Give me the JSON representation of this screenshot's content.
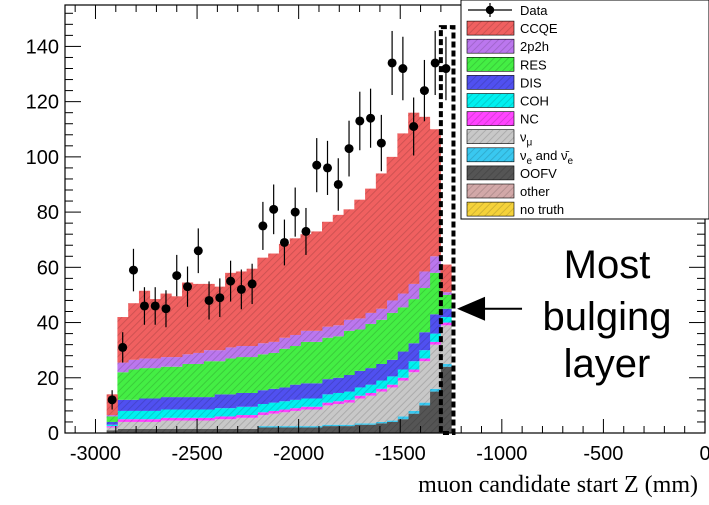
{
  "chart_data": {
    "type": "bar",
    "stacked": true,
    "xlabel": "muon candidate start Z (mm)",
    "ylabel": "",
    "xlim": [
      -3150,
      0
    ],
    "ylim": [
      0,
      155
    ],
    "x_ticks": [
      -3000,
      -2500,
      -2000,
      -1500,
      -1000,
      -500,
      0
    ],
    "x_tick_labels": [
      "-3000",
      "-2500",
      "-2000",
      "-1500",
      "-1000",
      "-500",
      "0"
    ],
    "y_ticks": [
      0,
      20,
      40,
      60,
      80,
      100,
      120,
      140
    ],
    "y_tick_labels": [
      "0",
      "20",
      "40",
      "60",
      "80",
      "100",
      "120",
      "140"
    ],
    "bin_edges": [
      -2945,
      -2892,
      -2839,
      -2786,
      -2733,
      -2680,
      -2627,
      -2574,
      -2521,
      -2468,
      -2415,
      -2362,
      -2309,
      -2256,
      -2203,
      -2150,
      -2097,
      -2044,
      -1991,
      -1938,
      -1885,
      -1832,
      -1779,
      -1726,
      -1673,
      -1620,
      -1567,
      -1514,
      -1461,
      -1408,
      -1355,
      -1302,
      -1249
    ],
    "series": [
      {
        "name": "OOFV",
        "color": "#555555",
        "values": [
          1,
          1.5,
          1.5,
          1.5,
          1.5,
          1.5,
          1.5,
          1.5,
          1.5,
          1.5,
          1.5,
          1.5,
          1.5,
          1.5,
          2,
          2,
          2,
          2,
          2,
          2,
          2.5,
          2.5,
          2.5,
          3,
          3,
          3.5,
          4,
          5,
          7,
          10,
          15,
          24
        ]
      },
      {
        "name": "other",
        "color": "#d2a8a8",
        "values": [
          0,
          0,
          0,
          0,
          0,
          0,
          0,
          0,
          0,
          0,
          0,
          0,
          0,
          0,
          0,
          0,
          0,
          0,
          0,
          0,
          0,
          0,
          0,
          0,
          0,
          0,
          0,
          0,
          0,
          0,
          0,
          0
        ]
      },
      {
        "name": "νe and ν̄e",
        "color": "#39c8f0",
        "values": [
          0,
          0,
          0,
          0,
          0,
          0,
          0,
          0,
          0,
          0,
          0,
          0,
          0,
          0,
          0.5,
          0.5,
          0.5,
          0.5,
          0.5,
          0.5,
          0.5,
          0.5,
          0.5,
          0.5,
          0.5,
          0.5,
          0.5,
          1,
          1,
          1,
          1,
          1
        ]
      },
      {
        "name": "νμ",
        "color": "#c8c8c8",
        "values": [
          1,
          2.5,
          2.5,
          2.5,
          2.5,
          3,
          3,
          3,
          3,
          3,
          3.5,
          3.5,
          4,
          4,
          4,
          4.5,
          5,
          5.5,
          6,
          6,
          7,
          7.5,
          8,
          9,
          10,
          11,
          12,
          13,
          14,
          15,
          16,
          14
        ]
      },
      {
        "name": "NC",
        "color": "#ff44ff",
        "values": [
          0.5,
          1,
          1,
          1,
          1,
          1,
          1,
          1,
          1,
          1,
          1,
          1,
          1,
          1,
          1,
          1,
          1,
          1,
          1,
          1,
          1,
          1,
          1,
          1,
          1,
          1,
          1,
          1,
          1,
          1,
          1,
          1
        ]
      },
      {
        "name": "COH",
        "color": "#00f0f0",
        "values": [
          0.5,
          3,
          3,
          3,
          3,
          3,
          3,
          3,
          3,
          3,
          3,
          3,
          3,
          3,
          3,
          3,
          3,
          3,
          3,
          3,
          3,
          3,
          3,
          3,
          3,
          3,
          3,
          3,
          3,
          3,
          3,
          2
        ]
      },
      {
        "name": "DIS",
        "color": "#5050f0",
        "values": [
          1,
          4,
          4,
          4.5,
          4.5,
          4.5,
          4.5,
          4.5,
          4.5,
          4.5,
          5,
          5,
          5,
          5,
          5,
          5,
          5,
          5.5,
          5.5,
          5.5,
          5.5,
          5.5,
          6,
          6,
          6,
          6,
          6,
          6.5,
          6.5,
          6.5,
          7,
          3
        ]
      },
      {
        "name": "RES",
        "color": "#44ee44",
        "values": [
          2,
          10,
          11,
          11,
          11,
          11,
          11,
          12,
          12,
          13,
          12,
          13,
          13,
          13,
          13,
          13,
          14,
          14,
          15,
          15,
          15,
          15,
          16,
          15,
          16,
          16,
          17,
          16,
          16,
          16,
          15,
          5
        ]
      },
      {
        "name": "2p2h",
        "color": "#bb77ee",
        "values": [
          0.5,
          3.5,
          3.5,
          3.5,
          3.5,
          3.5,
          3.5,
          3.5,
          4,
          4,
          4,
          4,
          4,
          4,
          4,
          4,
          4,
          4,
          4,
          4,
          4,
          4,
          4,
          4,
          4,
          4,
          4.5,
          5,
          5.5,
          6,
          6,
          1
        ]
      },
      {
        "name": "CCQE",
        "color": "#f06060",
        "values": [
          7.5,
          16.5,
          20.5,
          24.5,
          21.5,
          23,
          22,
          26,
          25,
          24,
          23,
          27,
          27,
          28,
          31,
          32,
          34,
          35,
          35,
          36,
          38,
          40,
          40,
          43,
          45,
          49,
          52,
          58,
          62,
          56,
          46,
          10
        ]
      }
    ],
    "data_points": {
      "name": "Data",
      "x": [
        -2918,
        -2866,
        -2813,
        -2759,
        -2706,
        -2653,
        -2600,
        -2547,
        -2494,
        -2441,
        -2388,
        -2335,
        -2282,
        -2229,
        -2176,
        -2123,
        -2070,
        -2017,
        -1964,
        -1911,
        -1858,
        -1805,
        -1752,
        -1699,
        -1646,
        -1593,
        -1540,
        -1487,
        -1434,
        -1381,
        -1328,
        -1275
      ],
      "y": [
        12,
        31,
        59,
        46,
        46,
        45,
        57,
        53,
        66,
        48,
        49,
        55,
        52,
        54,
        75,
        81,
        69,
        80,
        73,
        97,
        96,
        90,
        103,
        113,
        114,
        105,
        134,
        132,
        111,
        124,
        134,
        132
      ],
      "err": [
        3.5,
        5.5,
        7.7,
        6.8,
        6.8,
        6.7,
        7.5,
        7.3,
        8.1,
        6.9,
        7.0,
        7.4,
        7.2,
        7.3,
        8.7,
        9.0,
        8.3,
        8.9,
        8.5,
        9.8,
        9.8,
        9.5,
        10.1,
        10.6,
        10.7,
        10.2,
        11.6,
        11.5,
        10.5,
        11.1,
        11.6,
        11.5
      ]
    },
    "legend": {
      "placement": "top-right",
      "entries": [
        {
          "label": "Data",
          "kind": "marker",
          "color": "#000000"
        },
        {
          "label": "CCQE",
          "kind": "box",
          "color": "#f06060"
        },
        {
          "label": "2p2h",
          "kind": "box",
          "color": "#bb77ee"
        },
        {
          "label": "RES",
          "kind": "box",
          "color": "#44ee44"
        },
        {
          "label": "DIS",
          "kind": "box",
          "color": "#5050f0"
        },
        {
          "label": "COH",
          "kind": "box",
          "color": "#00f0f0"
        },
        {
          "label": "NC",
          "kind": "box",
          "color": "#ff44ff"
        },
        {
          "label": "νμ",
          "kind": "box",
          "color": "#c8c8c8",
          "base": "ν",
          "sub": "μ"
        },
        {
          "label": "νe and ν̄e",
          "kind": "box",
          "color": "#39c8f0",
          "base": "ν",
          "sub": "e",
          "mid": " and ",
          "base2": "ν̄",
          "sub2": "e"
        },
        {
          "label": "OOFV",
          "kind": "box",
          "color": "#555555"
        },
        {
          "label": "other",
          "kind": "box",
          "color": "#d2a8a8"
        },
        {
          "label": "no truth",
          "kind": "box",
          "color": "#f5d23a"
        }
      ]
    },
    "annotation": {
      "lines": [
        "Most",
        "bulging",
        "layer"
      ],
      "highlight_range": [
        -1300,
        -1238
      ],
      "highlight_top": 147,
      "arrow_target_x": -1250,
      "arrow_target_y": 45
    }
  }
}
